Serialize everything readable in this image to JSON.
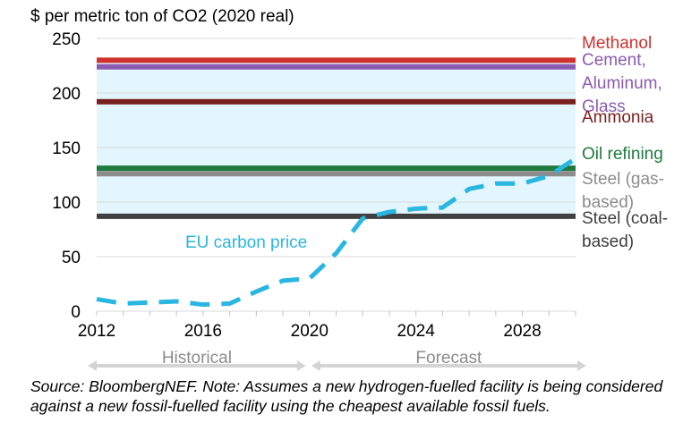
{
  "chart_data": {
    "type": "line",
    "title": "$ per metric ton of CO2 (2020 real)",
    "xlabel": "",
    "ylabel": "$ per metric ton of CO2 (2020 real)",
    "xlim": [
      2012,
      2030
    ],
    "ylim": [
      0,
      250
    ],
    "x_ticks": [
      "2012",
      "2016",
      "2020",
      "2024",
      "2028"
    ],
    "y_ticks": [
      "0",
      "50",
      "100",
      "150",
      "200",
      "250"
    ],
    "grid": "horizontal",
    "shaded_band": {
      "from": 87,
      "to": 230,
      "color": "#e4f6fd"
    },
    "periods": [
      {
        "label": "Historical",
        "from": 2012,
        "to": 2020
      },
      {
        "label": "Forecast",
        "from": 2020,
        "to": 2030
      }
    ],
    "thresholds": [
      {
        "label": [
          "Methanol"
        ],
        "value": 230,
        "color": "#d0312d"
      },
      {
        "label": [
          "Cement,",
          "Aluminum,",
          "Glass"
        ],
        "value": 224,
        "color": "#8a5bb0"
      },
      {
        "label": [
          "Ammonia"
        ],
        "value": 192,
        "color": "#7a1f1f"
      },
      {
        "label": [
          "Oil refining"
        ],
        "value": 131,
        "color": "#1f7a3e"
      },
      {
        "label": [
          "Steel (gas-",
          "based)"
        ],
        "value": 126,
        "color": "#8c8c8c"
      },
      {
        "label": [
          "Steel (coal-",
          "based)"
        ],
        "value": 87,
        "color": "#404040"
      }
    ],
    "series": [
      {
        "name": "EU carbon price",
        "color": "#29b6e0",
        "x": [
          2012,
          2013,
          2014,
          2015,
          2016,
          2017,
          2018,
          2019,
          2020,
          2021,
          2022,
          2023,
          2024,
          2025,
          2026,
          2027,
          2028,
          2029,
          2030
        ],
        "y": [
          11,
          7,
          8,
          9,
          6,
          7,
          18,
          28,
          30,
          53,
          85,
          91,
          94,
          95,
          112,
          117,
          117,
          124,
          140
        ]
      }
    ]
  },
  "source_note": "Source: BloombergNEF. Note: Assumes a new hydrogen-fuelled facility is being considered against a new fossil-fuelled facility using the cheapest available fossil fuels."
}
